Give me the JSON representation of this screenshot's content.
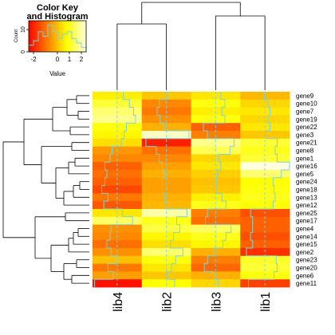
{
  "chart_data": {
    "type": "heatmap",
    "title": "Color Key and Histogram",
    "color_key": {
      "title_line1": "Color Key",
      "title_line2": "and Histogram",
      "ylabel": "Count",
      "xlabel": "Value",
      "xticks": [
        "-2",
        "0",
        "1",
        "2"
      ],
      "yticks": [
        "0",
        "10"
      ],
      "xlim": [
        -2.4,
        2.4
      ],
      "ylim": [
        0,
        14
      ],
      "hist_bins": [
        [
          -2.4,
          -2.0,
          3
        ],
        [
          -2.0,
          -1.6,
          5
        ],
        [
          -1.6,
          -1.2,
          9
        ],
        [
          -1.2,
          -0.8,
          7
        ],
        [
          -0.8,
          -0.4,
          12
        ],
        [
          -0.4,
          0.0,
          9
        ],
        [
          0.0,
          0.4,
          6
        ],
        [
          0.4,
          0.8,
          8
        ],
        [
          0.8,
          1.2,
          9
        ],
        [
          1.2,
          1.6,
          6
        ],
        [
          1.6,
          2.0,
          4
        ],
        [
          2.0,
          2.4,
          2
        ]
      ],
      "colors": [
        "#ff0000",
        "#ff8000",
        "#ffff00",
        "#ffffe0"
      ]
    },
    "columns": [
      "lib4",
      "lib2",
      "lib3",
      "lib1"
    ],
    "rows": [
      "gene9",
      "gene10",
      "gene7",
      "gene19",
      "gene22",
      "gene3",
      "gene21",
      "gene8",
      "gene1",
      "gene16",
      "gene5",
      "gene24",
      "gene18",
      "gene13",
      "gene12",
      "gene25",
      "gene17",
      "gene4",
      "gene14",
      "gene15",
      "gene2",
      "gene23",
      "gene20",
      "gene6",
      "gene11"
    ],
    "values": [
      [
        0.6,
        0.1,
        0.5,
        -0.1
      ],
      [
        1.2,
        -0.7,
        0.9,
        0.3
      ],
      [
        1.6,
        -0.9,
        0.6,
        0.5
      ],
      [
        1.8,
        -0.6,
        0.9,
        0.3
      ],
      [
        0.9,
        -0.2,
        -1.2,
        0.5
      ],
      [
        0.7,
        2.2,
        -0.8,
        0.1
      ],
      [
        0.4,
        -2.0,
        1.8,
        1.2
      ],
      [
        -0.5,
        -1.0,
        1.4,
        1.0
      ],
      [
        -0.7,
        -0.7,
        0.3,
        1.2
      ],
      [
        -1.2,
        -0.4,
        0.5,
        2.4
      ],
      [
        -1.0,
        -0.2,
        0.2,
        1.6
      ],
      [
        -1.2,
        -0.4,
        0.0,
        0.8
      ],
      [
        -1.5,
        -0.4,
        0.1,
        0.9
      ],
      [
        -0.9,
        -0.2,
        0.6,
        1.0
      ],
      [
        -1.3,
        -0.1,
        1.0,
        0.8
      ],
      [
        0.5,
        2.0,
        -0.8,
        -1.4
      ],
      [
        1.5,
        1.0,
        -1.0,
        -1.2
      ],
      [
        -0.6,
        1.3,
        1.5,
        -1.2
      ],
      [
        -0.7,
        0.7,
        1.0,
        -1.4
      ],
      [
        -1.0,
        0.4,
        0.7,
        -1.2
      ],
      [
        -0.6,
        1.6,
        -0.2,
        -1.8
      ],
      [
        0.0,
        0.9,
        -0.8,
        1.1
      ],
      [
        -0.9,
        0.5,
        -1.1,
        1.2
      ],
      [
        -0.4,
        0.1,
        -0.2,
        0.9
      ],
      [
        -2.2,
        0.8,
        0.3,
        -1.6
      ]
    ]
  }
}
